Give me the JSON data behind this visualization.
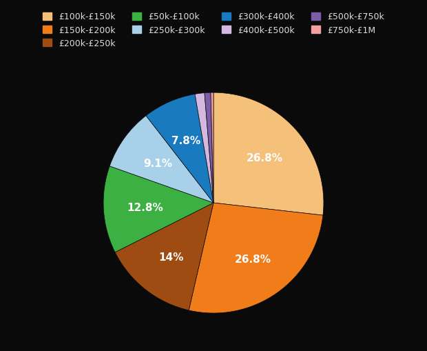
{
  "labels": [
    "£100k-£150k",
    "£150k-£200k",
    "£200k-£250k",
    "£50k-£100k",
    "£250k-£300k",
    "£300k-£400k",
    "£400k-£500k",
    "£500k-£750k",
    "£750k-£1M"
  ],
  "values": [
    26.8,
    26.8,
    14.0,
    12.8,
    9.1,
    7.8,
    1.4,
    0.9,
    0.4
  ],
  "colors": [
    "#f5c07a",
    "#f07d1a",
    "#9e4c12",
    "#3cb043",
    "#a8d0e8",
    "#1a7abf",
    "#d4b8e0",
    "#7b5ea7",
    "#f4a0a0"
  ],
  "pct_labels": [
    "26.8%",
    "26.8%",
    "14%",
    "12.8%",
    "9.1%",
    "7.8%",
    "",
    "",
    ""
  ],
  "background_color": "#0a0a0a",
  "text_color": "#ffffff",
  "legend_text_color": "#dddddd",
  "startangle": 90,
  "figsize": [
    6.2,
    5.1
  ],
  "dpi": 100
}
